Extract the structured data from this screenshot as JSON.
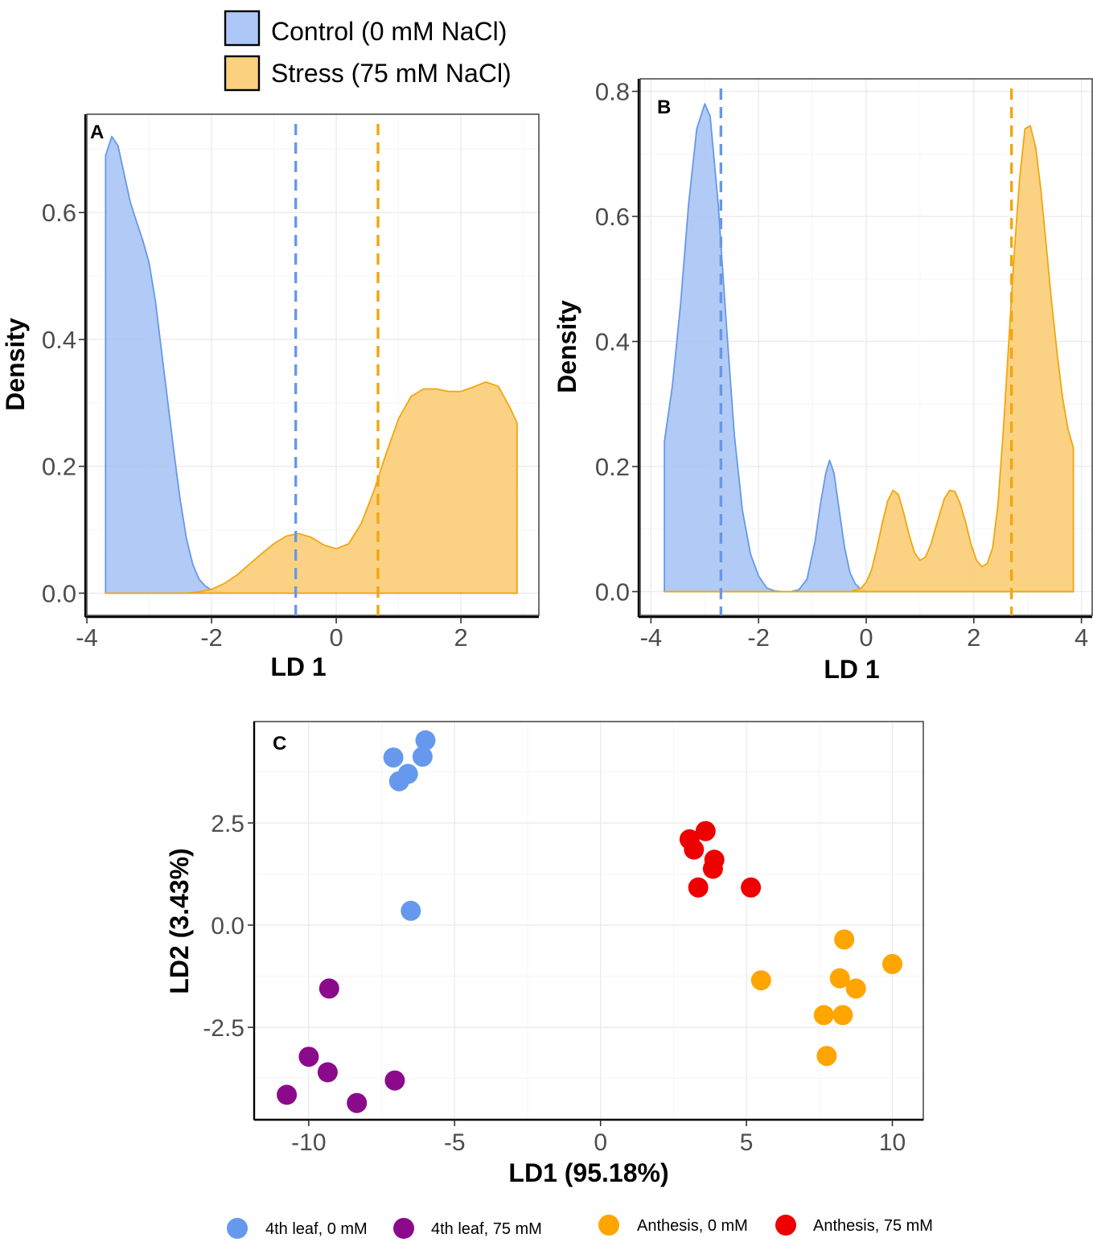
{
  "legend_top": {
    "items": [
      {
        "label": "Control (0 mM NaCl)",
        "color": "#adc8f6"
      },
      {
        "label": "Stress (75 mM NaCl)",
        "color": "#fbd07f"
      }
    ]
  },
  "colors": {
    "control_fill": "#a9c4f5",
    "control_line": "#6699e6",
    "stress_fill": "#fbcd75",
    "stress_line": "#f2a60f",
    "pt_4th_0": "#6699ee",
    "pt_4th_75": "#8b0a8b",
    "pt_anth_0": "#ffa500",
    "pt_anth_75": "#ee0000"
  },
  "chart_data": [
    {
      "panel": "A",
      "type": "area",
      "xlabel": "LD 1",
      "ylabel": "Density",
      "xlim": [
        -4,
        3.25
      ],
      "ylim": [
        -0.035,
        0.755
      ],
      "xticks": [
        -4,
        -2,
        0,
        2
      ],
      "yticks": [
        0.0,
        0.2,
        0.4,
        0.6
      ],
      "series": [
        {
          "name": "Control (0 mM NaCl)",
          "x": [
            -3.7,
            -3.6,
            -3.5,
            -3.4,
            -3.3,
            -3.2,
            -3.1,
            -3.0,
            -2.9,
            -2.8,
            -2.7,
            -2.6,
            -2.5,
            -2.4,
            -2.3,
            -2.2,
            -2.1,
            -2.0,
            -1.9,
            -1.8,
            -1.7,
            -1.6,
            -1.5,
            2.9
          ],
          "y": [
            0.69,
            0.72,
            0.705,
            0.66,
            0.615,
            0.585,
            0.555,
            0.52,
            0.46,
            0.38,
            0.3,
            0.22,
            0.145,
            0.085,
            0.045,
            0.022,
            0.011,
            0.005,
            0.002,
            0.001,
            0.0,
            0.0,
            0.0,
            0.0
          ]
        },
        {
          "name": "Stress (75 mM NaCl)",
          "x": [
            -3.7,
            -2.4,
            -2.2,
            -2.0,
            -1.8,
            -1.6,
            -1.4,
            -1.2,
            -1.0,
            -0.8,
            -0.6,
            -0.4,
            -0.2,
            0.0,
            0.2,
            0.4,
            0.6,
            0.8,
            1.0,
            1.2,
            1.4,
            1.6,
            1.8,
            2.0,
            2.2,
            2.4,
            2.6,
            2.8,
            2.9
          ],
          "y": [
            0.0,
            0.0,
            0.002,
            0.006,
            0.015,
            0.028,
            0.045,
            0.062,
            0.078,
            0.09,
            0.094,
            0.088,
            0.076,
            0.07,
            0.078,
            0.11,
            0.16,
            0.22,
            0.275,
            0.31,
            0.322,
            0.322,
            0.318,
            0.318,
            0.325,
            0.333,
            0.326,
            0.29,
            0.268
          ]
        }
      ],
      "vlines": [
        {
          "x": -0.65,
          "color": "control"
        },
        {
          "x": 0.67,
          "color": "stress"
        }
      ]
    },
    {
      "panel": "B",
      "type": "area",
      "xlabel": "LD 1",
      "ylabel": "Density",
      "xlim": [
        -4.2,
        4.2
      ],
      "ylim": [
        -0.038,
        0.82
      ],
      "xticks": [
        -4,
        -2,
        0,
        2,
        4
      ],
      "yticks": [
        0.0,
        0.2,
        0.4,
        0.6,
        0.8
      ],
      "series": [
        {
          "name": "Control (0 mM NaCl)",
          "x": [
            -3.75,
            -3.6,
            -3.45,
            -3.3,
            -3.15,
            -3.0,
            -2.9,
            -2.75,
            -2.6,
            -2.45,
            -2.3,
            -2.15,
            -2.0,
            -1.85,
            -1.7,
            -1.55,
            -1.4,
            -1.25,
            -1.1,
            -0.95,
            -0.85,
            -0.75,
            -0.68,
            -0.6,
            -0.5,
            -0.4,
            -0.3,
            -0.2,
            -0.1,
            0.0,
            0.1,
            3.85
          ],
          "y": [
            0.24,
            0.33,
            0.46,
            0.62,
            0.74,
            0.78,
            0.76,
            0.62,
            0.43,
            0.25,
            0.13,
            0.06,
            0.025,
            0.006,
            0.001,
            0.0,
            0.0,
            0.003,
            0.02,
            0.08,
            0.14,
            0.19,
            0.21,
            0.19,
            0.13,
            0.07,
            0.03,
            0.012,
            0.004,
            0.001,
            0.0,
            0.0
          ]
        },
        {
          "name": "Stress (75 mM NaCl)",
          "x": [
            -3.75,
            -0.3,
            -0.1,
            0.0,
            0.1,
            0.2,
            0.3,
            0.4,
            0.5,
            0.6,
            0.7,
            0.8,
            0.9,
            1.0,
            1.1,
            1.2,
            1.3,
            1.45,
            1.55,
            1.65,
            1.75,
            1.85,
            1.95,
            2.05,
            2.15,
            2.25,
            2.35,
            2.45,
            2.55,
            2.65,
            2.75,
            2.85,
            2.95,
            3.05,
            3.15,
            3.25,
            3.35,
            3.45,
            3.55,
            3.65,
            3.75,
            3.85
          ],
          "y": [
            0.0,
            0.0,
            0.005,
            0.015,
            0.035,
            0.07,
            0.11,
            0.145,
            0.162,
            0.155,
            0.125,
            0.09,
            0.062,
            0.05,
            0.055,
            0.075,
            0.105,
            0.148,
            0.162,
            0.16,
            0.14,
            0.11,
            0.075,
            0.05,
            0.04,
            0.045,
            0.07,
            0.14,
            0.26,
            0.4,
            0.54,
            0.66,
            0.74,
            0.745,
            0.71,
            0.64,
            0.55,
            0.46,
            0.38,
            0.31,
            0.26,
            0.23
          ]
        }
      ],
      "vlines": [
        {
          "x": -2.7,
          "color": "control"
        },
        {
          "x": 2.7,
          "color": "stress"
        }
      ]
    },
    {
      "panel": "C",
      "type": "scatter",
      "xlabel": "LD1 (95.18%)",
      "ylabel": "LD2 (3.43%)",
      "xlim": [
        -11.87,
        11.06
      ],
      "ylim": [
        -4.76,
        4.98
      ],
      "xticks": [
        -10,
        -5,
        0,
        5,
        10
      ],
      "yticks": [
        2.5,
        0.0,
        -2.5
      ],
      "series": [
        {
          "name": "4th leaf, 0 mM",
          "color_key": "pt_4th_0",
          "points": [
            [
              -6.0,
              4.52
            ],
            [
              -7.1,
              4.1
            ],
            [
              -6.1,
              4.12
            ],
            [
              -6.6,
              3.7
            ],
            [
              -6.9,
              3.52
            ],
            [
              -6.5,
              0.35
            ]
          ]
        },
        {
          "name": "4th leaf, 75 mM",
          "color_key": "pt_4th_75",
          "points": [
            [
              -9.3,
              -1.55
            ],
            [
              -10.0,
              -3.22
            ],
            [
              -9.35,
              -3.6
            ],
            [
              -7.05,
              -3.8
            ],
            [
              -10.75,
              -4.15
            ],
            [
              -8.35,
              -4.35
            ]
          ]
        },
        {
          "name": "Anthesis, 0 mM",
          "color_key": "pt_anth_0",
          "points": [
            [
              8.35,
              -0.35
            ],
            [
              10.0,
              -0.95
            ],
            [
              5.5,
              -1.35
            ],
            [
              8.2,
              -1.3
            ],
            [
              8.75,
              -1.55
            ],
            [
              7.65,
              -2.2
            ],
            [
              8.3,
              -2.2
            ],
            [
              7.75,
              -3.2
            ]
          ]
        },
        {
          "name": "Anthesis, 75 mM",
          "color_key": "pt_anth_75",
          "points": [
            [
              3.6,
              2.3
            ],
            [
              3.05,
              2.1
            ],
            [
              3.2,
              1.85
            ],
            [
              3.9,
              1.6
            ],
            [
              3.85,
              1.38
            ],
            [
              3.35,
              0.92
            ],
            [
              5.15,
              0.92
            ]
          ]
        }
      ]
    }
  ],
  "legend_bottom": {
    "items": [
      {
        "label": "4th leaf, 0 mM",
        "color_key": "pt_4th_0"
      },
      {
        "label": "4th leaf, 75 mM",
        "color_key": "pt_4th_75"
      },
      {
        "label": "Anthesis, 0 mM",
        "color_key": "pt_anth_0"
      },
      {
        "label": "Anthesis, 75 mM",
        "color_key": "pt_anth_75"
      }
    ]
  }
}
